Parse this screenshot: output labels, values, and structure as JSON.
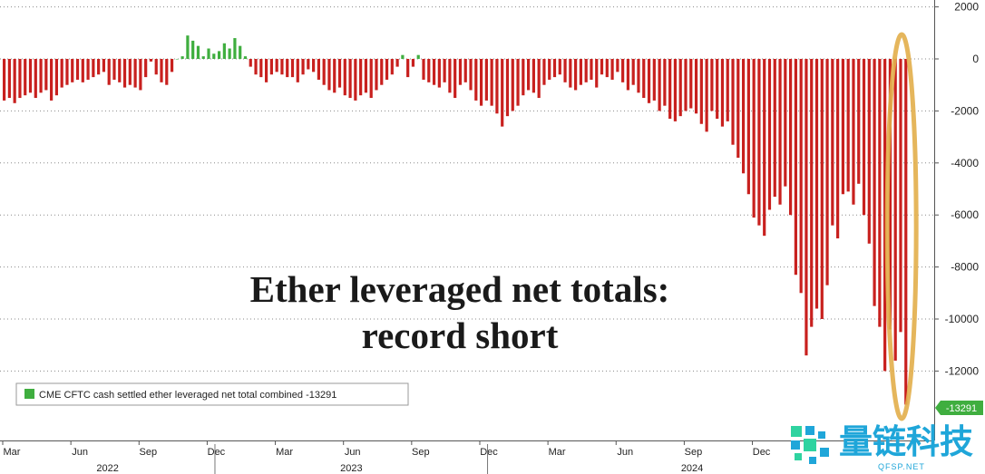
{
  "chart_data": {
    "type": "bar",
    "title": "Ether leveraged net totals:",
    "subtitle": "record short",
    "legend": {
      "label": "CME CFTC cash settled ether leveraged net total combined -13291",
      "placement": "bottom-left"
    },
    "last_value_label": "-13291",
    "y_axis": {
      "side": "right",
      "ylim": [
        -14500,
        2000
      ],
      "ticks": [
        2000,
        0,
        -2000,
        -4000,
        -6000,
        -8000,
        -10000,
        -12000
      ],
      "tick_labels": [
        "2000",
        "0",
        "-2000",
        "-4000",
        "-6000",
        "-8000",
        "-10000",
        "-12000"
      ]
    },
    "x_axis": {
      "month_ticks": [
        {
          "label": "Mar",
          "index": 0
        },
        {
          "label": "Jun",
          "index": 13
        },
        {
          "label": "Sep",
          "index": 26
        },
        {
          "label": "Dec",
          "index": 39
        },
        {
          "label": "Mar",
          "index": 52
        },
        {
          "label": "Jun",
          "index": 65
        },
        {
          "label": "Sep",
          "index": 78
        },
        {
          "label": "Dec",
          "index": 91
        },
        {
          "label": "Mar",
          "index": 104
        },
        {
          "label": "Jun",
          "index": 117
        },
        {
          "label": "Sep",
          "index": 130
        },
        {
          "label": "Dec",
          "index": 143
        }
      ],
      "years": [
        {
          "label": "2022",
          "from_index": 0,
          "to_index": 40
        },
        {
          "label": "2023",
          "from_index": 41,
          "to_index": 92
        },
        {
          "label": "2024",
          "from_index": 93,
          "to_index": 170
        }
      ]
    },
    "grid": true,
    "highlight": {
      "shape": "ellipse",
      "color": "#e2ae4a",
      "around_index": 172
    },
    "colors": {
      "negative": "#c8201e",
      "positive": "#3fae3f",
      "ellipse": "#e2ae4a",
      "label_box": "#3fae3f"
    },
    "values": [
      -1600,
      -1500,
      -1700,
      -1500,
      -1400,
      -1300,
      -1500,
      -1300,
      -1200,
      -1600,
      -1400,
      -1100,
      -1000,
      -900,
      -800,
      -900,
      -800,
      -700,
      -600,
      -500,
      -1000,
      -800,
      -900,
      -1100,
      -1000,
      -1100,
      -1200,
      -700,
      -100,
      -600,
      -900,
      -1000,
      -500,
      0,
      100,
      900,
      700,
      500,
      100,
      400,
      200,
      300,
      600,
      400,
      800,
      500,
      100,
      -300,
      -600,
      -700,
      -900,
      -600,
      -500,
      -600,
      -700,
      -700,
      -900,
      -600,
      -400,
      -500,
      -800,
      -1000,
      -1200,
      -1300,
      -1100,
      -1400,
      -1500,
      -1600,
      -1400,
      -1300,
      -1500,
      -1200,
      -1000,
      -800,
      -600,
      -300,
      150,
      -700,
      -300,
      150,
      -800,
      -900,
      -1000,
      -1100,
      -900,
      -1300,
      -1500,
      -1000,
      -900,
      -1200,
      -1600,
      -1800,
      -1600,
      -1800,
      -2100,
      -2600,
      -2200,
      -2000,
      -1800,
      -1400,
      -1200,
      -1300,
      -1500,
      -1000,
      -800,
      -700,
      -600,
      -900,
      -1100,
      -1200,
      -1000,
      -900,
      -800,
      -1100,
      -600,
      -700,
      -800,
      -500,
      -900,
      -1200,
      -1000,
      -1300,
      -1500,
      -1700,
      -1600,
      -2000,
      -1800,
      -2300,
      -2400,
      -2200,
      -2000,
      -1900,
      -2100,
      -2500,
      -2800,
      -2000,
      -2300,
      -2600,
      -2400,
      -3300,
      -3800,
      -4400,
      -5200,
      -6100,
      -6400,
      -6800,
      -5800,
      -5300,
      -5600,
      -4900,
      -6000,
      -8300,
      -9000,
      -11400,
      -10300,
      -9600,
      -10000,
      -8700,
      -6400,
      -6900,
      -5200,
      -5100,
      -5600,
      -4800,
      -6000,
      -7100,
      -9500,
      -10300,
      -12000,
      -10400,
      -11600,
      -10500,
      -13291
    ]
  }
}
